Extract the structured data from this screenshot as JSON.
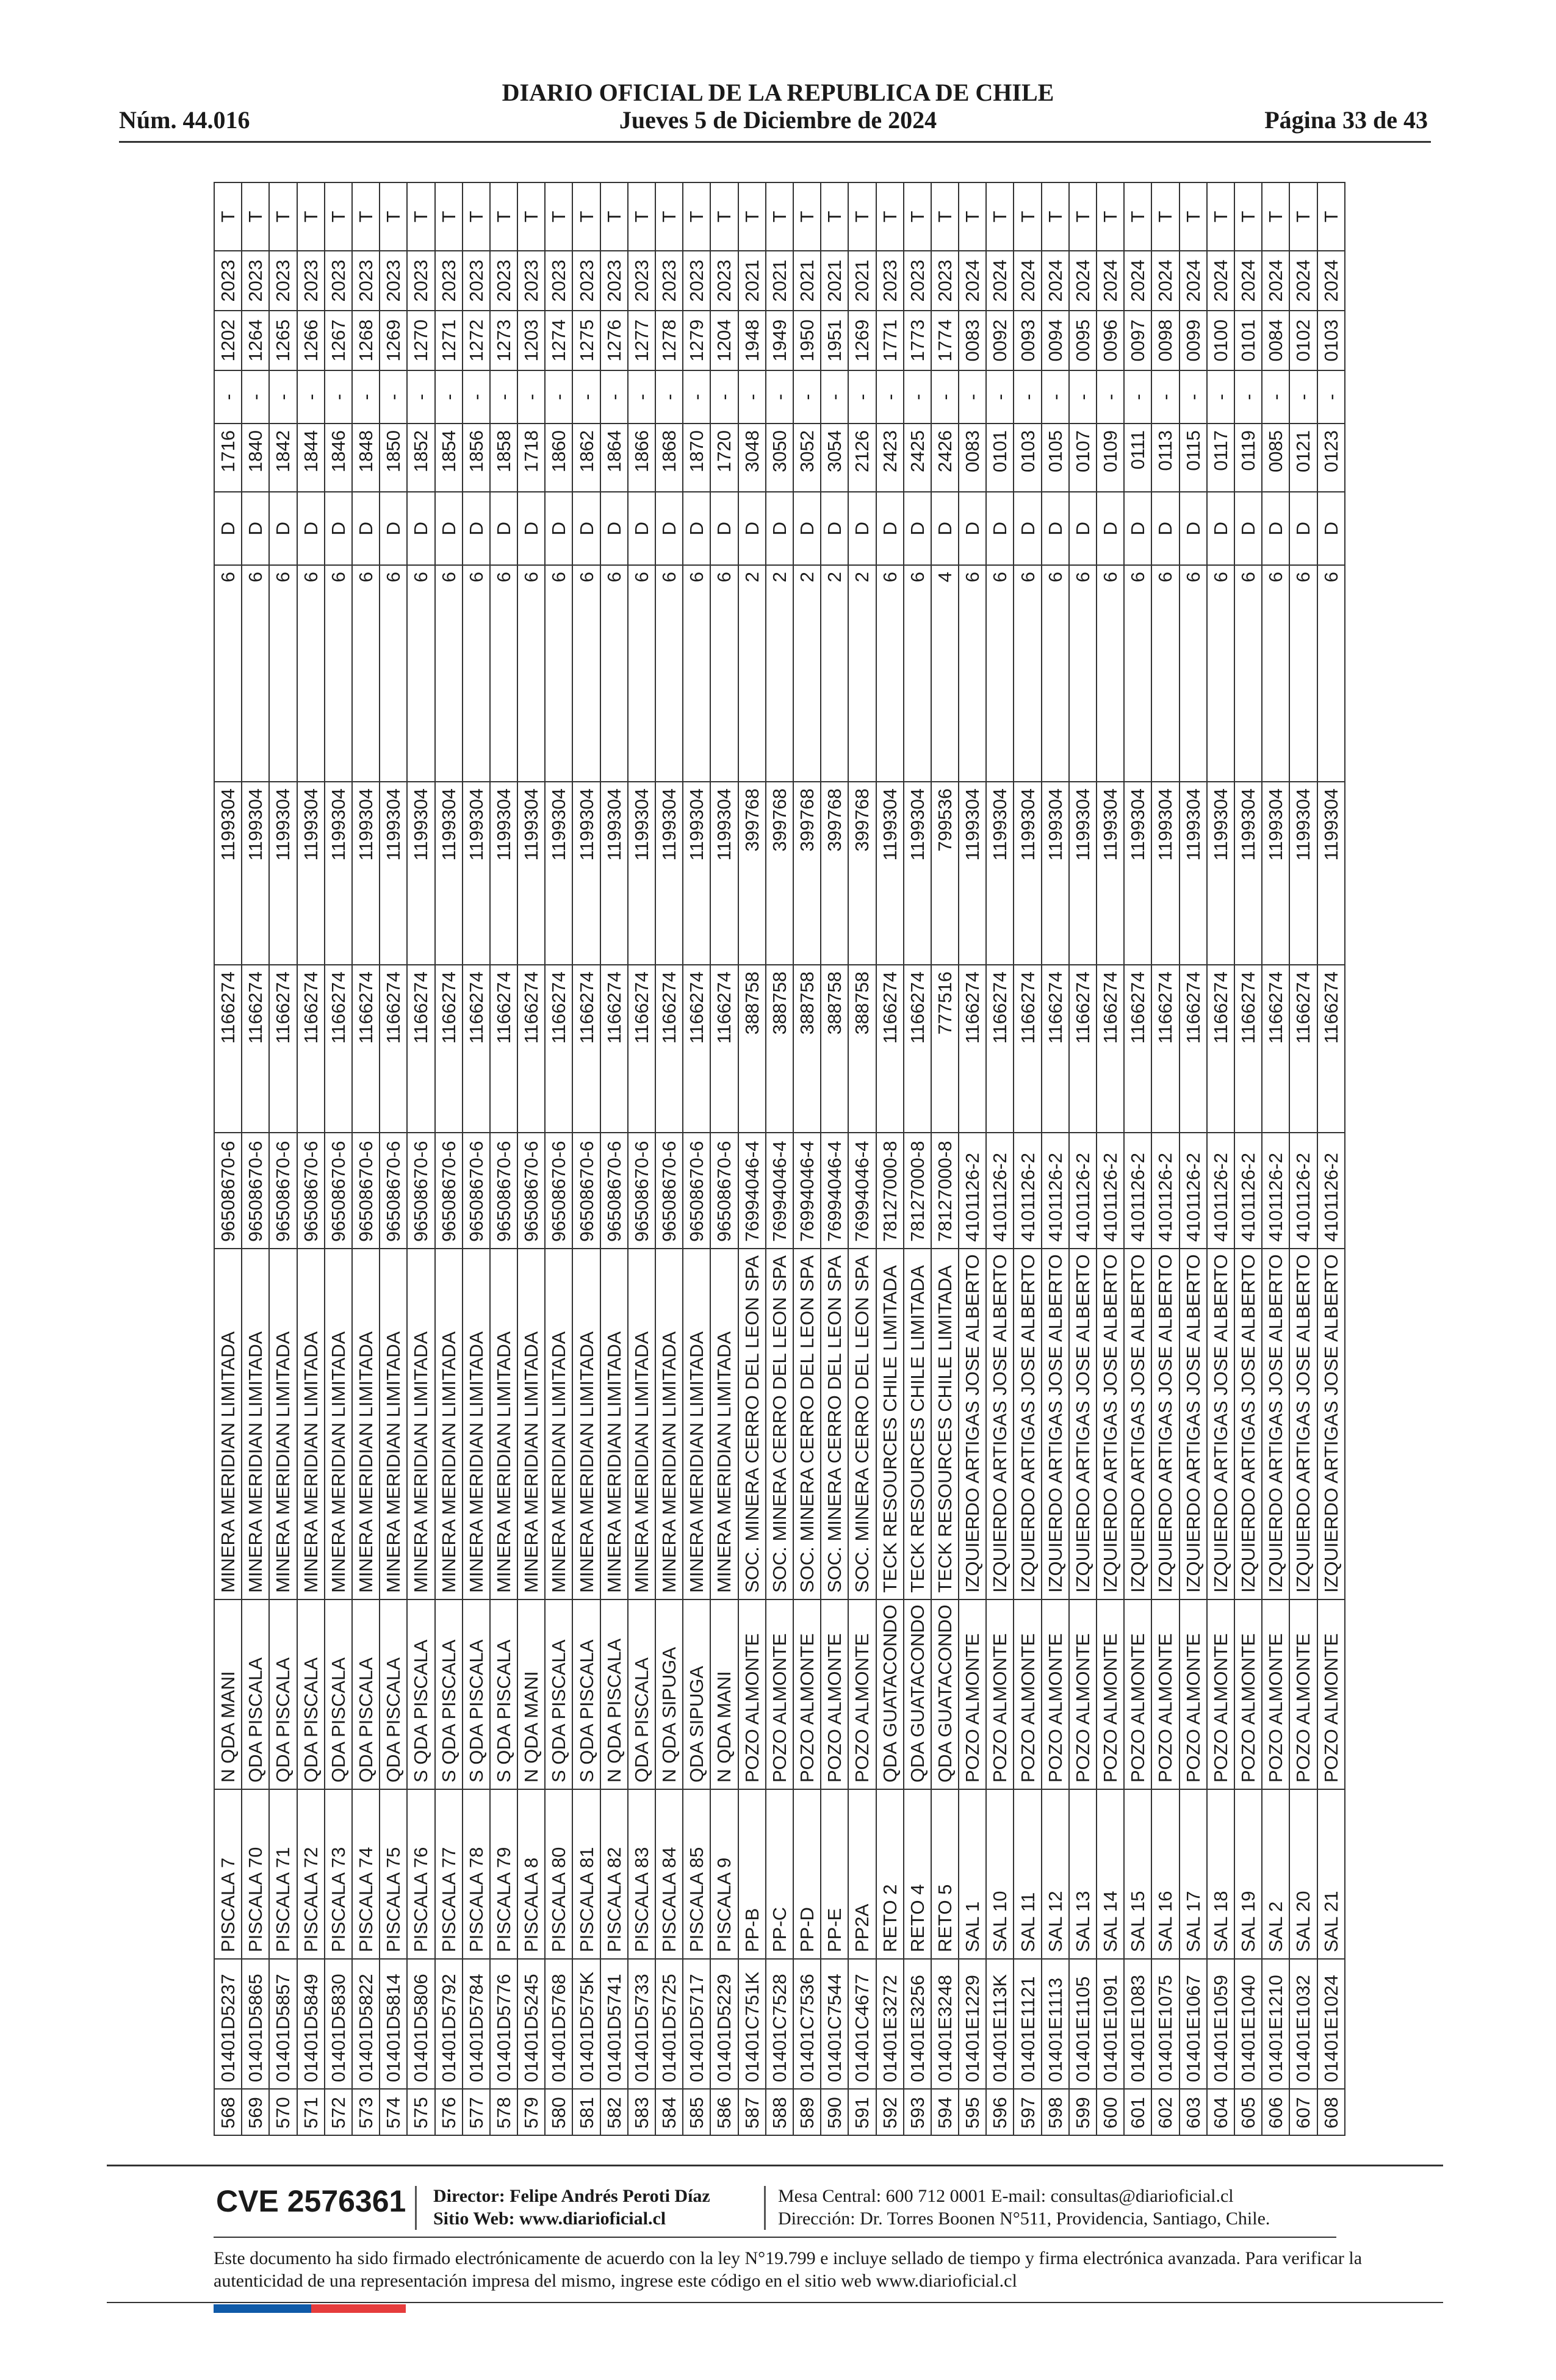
{
  "header": {
    "title": "DIARIO OFICIAL DE LA REPUBLICA DE CHILE",
    "number": "Núm. 44.016",
    "date": "Jueves 5 de Diciembre de 2024",
    "page": "Página 33 de 43"
  },
  "table": {
    "rows": [
      [
        "568",
        "01401D5237",
        "PISCALA 7",
        "N QDA MANI",
        "MINERA MERIDIAN LIMITADA",
        "96508670-6",
        "1166274",
        "1199304",
        "6",
        "D",
        "1716",
        "-",
        "1202",
        "2023",
        "T"
      ],
      [
        "569",
        "01401D5865",
        "PISCALA 70",
        "QDA PISCALA",
        "MINERA MERIDIAN LIMITADA",
        "96508670-6",
        "1166274",
        "1199304",
        "6",
        "D",
        "1840",
        "-",
        "1264",
        "2023",
        "T"
      ],
      [
        "570",
        "01401D5857",
        "PISCALA 71",
        "QDA PISCALA",
        "MINERA MERIDIAN LIMITADA",
        "96508670-6",
        "1166274",
        "1199304",
        "6",
        "D",
        "1842",
        "-",
        "1265",
        "2023",
        "T"
      ],
      [
        "571",
        "01401D5849",
        "PISCALA 72",
        "QDA PISCALA",
        "MINERA MERIDIAN LIMITADA",
        "96508670-6",
        "1166274",
        "1199304",
        "6",
        "D",
        "1844",
        "-",
        "1266",
        "2023",
        "T"
      ],
      [
        "572",
        "01401D5830",
        "PISCALA 73",
        "QDA PISCALA",
        "MINERA MERIDIAN LIMITADA",
        "96508670-6",
        "1166274",
        "1199304",
        "6",
        "D",
        "1846",
        "-",
        "1267",
        "2023",
        "T"
      ],
      [
        "573",
        "01401D5822",
        "PISCALA 74",
        "QDA PISCALA",
        "MINERA MERIDIAN LIMITADA",
        "96508670-6",
        "1166274",
        "1199304",
        "6",
        "D",
        "1848",
        "-",
        "1268",
        "2023",
        "T"
      ],
      [
        "574",
        "01401D5814",
        "PISCALA 75",
        "QDA PISCALA",
        "MINERA MERIDIAN LIMITADA",
        "96508670-6",
        "1166274",
        "1199304",
        "6",
        "D",
        "1850",
        "-",
        "1269",
        "2023",
        "T"
      ],
      [
        "575",
        "01401D5806",
        "PISCALA 76",
        "S QDA PISCALA",
        "MINERA MERIDIAN LIMITADA",
        "96508670-6",
        "1166274",
        "1199304",
        "6",
        "D",
        "1852",
        "-",
        "1270",
        "2023",
        "T"
      ],
      [
        "576",
        "01401D5792",
        "PISCALA 77",
        "S QDA PISCALA",
        "MINERA MERIDIAN LIMITADA",
        "96508670-6",
        "1166274",
        "1199304",
        "6",
        "D",
        "1854",
        "-",
        "1271",
        "2023",
        "T"
      ],
      [
        "577",
        "01401D5784",
        "PISCALA 78",
        "S QDA PISCALA",
        "MINERA MERIDIAN LIMITADA",
        "96508670-6",
        "1166274",
        "1199304",
        "6",
        "D",
        "1856",
        "-",
        "1272",
        "2023",
        "T"
      ],
      [
        "578",
        "01401D5776",
        "PISCALA 79",
        "S QDA PISCALA",
        "MINERA MERIDIAN LIMITADA",
        "96508670-6",
        "1166274",
        "1199304",
        "6",
        "D",
        "1858",
        "-",
        "1273",
        "2023",
        "T"
      ],
      [
        "579",
        "01401D5245",
        "PISCALA 8",
        "N QDA MANI",
        "MINERA MERIDIAN LIMITADA",
        "96508670-6",
        "1166274",
        "1199304",
        "6",
        "D",
        "1718",
        "-",
        "1203",
        "2023",
        "T"
      ],
      [
        "580",
        "01401D5768",
        "PISCALA 80",
        "S QDA PISCALA",
        "MINERA MERIDIAN LIMITADA",
        "96508670-6",
        "1166274",
        "1199304",
        "6",
        "D",
        "1860",
        "-",
        "1274",
        "2023",
        "T"
      ],
      [
        "581",
        "01401D575K",
        "PISCALA 81",
        "S QDA PISCALA",
        "MINERA MERIDIAN LIMITADA",
        "96508670-6",
        "1166274",
        "1199304",
        "6",
        "D",
        "1862",
        "-",
        "1275",
        "2023",
        "T"
      ],
      [
        "582",
        "01401D5741",
        "PISCALA 82",
        "N QDA PISCALA",
        "MINERA MERIDIAN LIMITADA",
        "96508670-6",
        "1166274",
        "1199304",
        "6",
        "D",
        "1864",
        "-",
        "1276",
        "2023",
        "T"
      ],
      [
        "583",
        "01401D5733",
        "PISCALA 83",
        "QDA PISCALA",
        "MINERA MERIDIAN LIMITADA",
        "96508670-6",
        "1166274",
        "1199304",
        "6",
        "D",
        "1866",
        "-",
        "1277",
        "2023",
        "T"
      ],
      [
        "584",
        "01401D5725",
        "PISCALA 84",
        "N QDA SIPUGA",
        "MINERA MERIDIAN LIMITADA",
        "96508670-6",
        "1166274",
        "1199304",
        "6",
        "D",
        "1868",
        "-",
        "1278",
        "2023",
        "T"
      ],
      [
        "585",
        "01401D5717",
        "PISCALA 85",
        "QDA SIPUGA",
        "MINERA MERIDIAN LIMITADA",
        "96508670-6",
        "1166274",
        "1199304",
        "6",
        "D",
        "1870",
        "-",
        "1279",
        "2023",
        "T"
      ],
      [
        "586",
        "01401D5229",
        "PISCALA 9",
        "N QDA MANI",
        "MINERA MERIDIAN LIMITADA",
        "96508670-6",
        "1166274",
        "1199304",
        "6",
        "D",
        "1720",
        "-",
        "1204",
        "2023",
        "T"
      ],
      [
        "587",
        "01401C751K",
        "PP-B",
        "POZO ALMONTE",
        "SOC. MINERA CERRO DEL LEON SPA",
        "76994046-4",
        "388758",
        "399768",
        "2",
        "D",
        "3048",
        "-",
        "1948",
        "2021",
        "T"
      ],
      [
        "588",
        "01401C7528",
        "PP-C",
        "POZO ALMONTE",
        "SOC. MINERA CERRO DEL LEON SPA",
        "76994046-4",
        "388758",
        "399768",
        "2",
        "D",
        "3050",
        "-",
        "1949",
        "2021",
        "T"
      ],
      [
        "589",
        "01401C7536",
        "PP-D",
        "POZO ALMONTE",
        "SOC. MINERA CERRO DEL LEON SPA",
        "76994046-4",
        "388758",
        "399768",
        "2",
        "D",
        "3052",
        "-",
        "1950",
        "2021",
        "T"
      ],
      [
        "590",
        "01401C7544",
        "PP-E",
        "POZO ALMONTE",
        "SOC. MINERA CERRO DEL LEON SPA",
        "76994046-4",
        "388758",
        "399768",
        "2",
        "D",
        "3054",
        "-",
        "1951",
        "2021",
        "T"
      ],
      [
        "591",
        "01401C4677",
        "PP2A",
        "POZO ALMONTE",
        "SOC. MINERA CERRO DEL LEON SPA",
        "76994046-4",
        "388758",
        "399768",
        "2",
        "D",
        "2126",
        "-",
        "1269",
        "2021",
        "T"
      ],
      [
        "592",
        "01401E3272",
        "RETO 2",
        "QDA GUATACONDO",
        "TECK RESOURCES CHILE LIMITADA",
        "78127000-8",
        "1166274",
        "1199304",
        "6",
        "D",
        "2423",
        "-",
        "1771",
        "2023",
        "T"
      ],
      [
        "593",
        "01401E3256",
        "RETO 4",
        "QDA GUATACONDO",
        "TECK RESOURCES CHILE LIMITADA",
        "78127000-8",
        "1166274",
        "1199304",
        "6",
        "D",
        "2425",
        "-",
        "1773",
        "2023",
        "T"
      ],
      [
        "594",
        "01401E3248",
        "RETO 5",
        "QDA GUATACONDO",
        "TECK RESOURCES CHILE LIMITADA",
        "78127000-8",
        "777516",
        "799536",
        "4",
        "D",
        "2426",
        "-",
        "1774",
        "2023",
        "T"
      ],
      [
        "595",
        "01401E1229",
        "SAL 1",
        "POZO ALMONTE",
        "IZQUIERDO ARTIGAS JOSE ALBERTO",
        "4101126-2",
        "1166274",
        "1199304",
        "6",
        "D",
        "0083",
        "-",
        "0083",
        "2024",
        "T"
      ],
      [
        "596",
        "01401E113K",
        "SAL 10",
        "POZO ALMONTE",
        "IZQUIERDO ARTIGAS JOSE ALBERTO",
        "4101126-2",
        "1166274",
        "1199304",
        "6",
        "D",
        "0101",
        "-",
        "0092",
        "2024",
        "T"
      ],
      [
        "597",
        "01401E1121",
        "SAL 11",
        "POZO ALMONTE",
        "IZQUIERDO ARTIGAS JOSE ALBERTO",
        "4101126-2",
        "1166274",
        "1199304",
        "6",
        "D",
        "0103",
        "-",
        "0093",
        "2024",
        "T"
      ],
      [
        "598",
        "01401E1113",
        "SAL 12",
        "POZO ALMONTE",
        "IZQUIERDO ARTIGAS JOSE ALBERTO",
        "4101126-2",
        "1166274",
        "1199304",
        "6",
        "D",
        "0105",
        "-",
        "0094",
        "2024",
        "T"
      ],
      [
        "599",
        "01401E1105",
        "SAL 13",
        "POZO ALMONTE",
        "IZQUIERDO ARTIGAS JOSE ALBERTO",
        "4101126-2",
        "1166274",
        "1199304",
        "6",
        "D",
        "0107",
        "-",
        "0095",
        "2024",
        "T"
      ],
      [
        "600",
        "01401E1091",
        "SAL 14",
        "POZO ALMONTE",
        "IZQUIERDO ARTIGAS JOSE ALBERTO",
        "4101126-2",
        "1166274",
        "1199304",
        "6",
        "D",
        "0109",
        "-",
        "0096",
        "2024",
        "T"
      ],
      [
        "601",
        "01401E1083",
        "SAL 15",
        "POZO ALMONTE",
        "IZQUIERDO ARTIGAS JOSE ALBERTO",
        "4101126-2",
        "1166274",
        "1199304",
        "6",
        "D",
        "0111",
        "-",
        "0097",
        "2024",
        "T"
      ],
      [
        "602",
        "01401E1075",
        "SAL 16",
        "POZO ALMONTE",
        "IZQUIERDO ARTIGAS JOSE ALBERTO",
        "4101126-2",
        "1166274",
        "1199304",
        "6",
        "D",
        "0113",
        "-",
        "0098",
        "2024",
        "T"
      ],
      [
        "603",
        "01401E1067",
        "SAL 17",
        "POZO ALMONTE",
        "IZQUIERDO ARTIGAS JOSE ALBERTO",
        "4101126-2",
        "1166274",
        "1199304",
        "6",
        "D",
        "0115",
        "-",
        "0099",
        "2024",
        "T"
      ],
      [
        "604",
        "01401E1059",
        "SAL 18",
        "POZO ALMONTE",
        "IZQUIERDO ARTIGAS JOSE ALBERTO",
        "4101126-2",
        "1166274",
        "1199304",
        "6",
        "D",
        "0117",
        "-",
        "0100",
        "2024",
        "T"
      ],
      [
        "605",
        "01401E1040",
        "SAL 19",
        "POZO ALMONTE",
        "IZQUIERDO ARTIGAS JOSE ALBERTO",
        "4101126-2",
        "1166274",
        "1199304",
        "6",
        "D",
        "0119",
        "-",
        "0101",
        "2024",
        "T"
      ],
      [
        "606",
        "01401E1210",
        "SAL 2",
        "POZO ALMONTE",
        "IZQUIERDO ARTIGAS JOSE ALBERTO",
        "4101126-2",
        "1166274",
        "1199304",
        "6",
        "D",
        "0085",
        "-",
        "0084",
        "2024",
        "T"
      ],
      [
        "607",
        "01401E1032",
        "SAL 20",
        "POZO ALMONTE",
        "IZQUIERDO ARTIGAS JOSE ALBERTO",
        "4101126-2",
        "1166274",
        "1199304",
        "6",
        "D",
        "0121",
        "-",
        "0102",
        "2024",
        "T"
      ],
      [
        "608",
        "01401E1024",
        "SAL 21",
        "POZO ALMONTE",
        "IZQUIERDO ARTIGAS JOSE ALBERTO",
        "4101126-2",
        "1166274",
        "1199304",
        "6",
        "D",
        "0123",
        "-",
        "0103",
        "2024",
        "T"
      ]
    ]
  },
  "footer": {
    "cve": "CVE 2576361",
    "director": "Director: Felipe Andrés Peroti Díaz",
    "website": "Sitio Web: www.diarioficial.cl",
    "phone": "Mesa Central: 600 712 0001  E-mail: consultas@diarioficial.cl",
    "address": "Dirección: Dr. Torres Boonen N°511, Providencia, Santiago, Chile.",
    "legal": "Este documento ha sido firmado electrónicamente de acuerdo con la ley N°19.799 e incluye sellado de tiempo y firma electrónica avanzada. Para verificar la autenticidad de una representación impresa del mismo, ingrese este código en el sitio web www.diarioficial.cl",
    "flag_colors": [
      "#0f5aa8",
      "#e63c3c"
    ]
  }
}
